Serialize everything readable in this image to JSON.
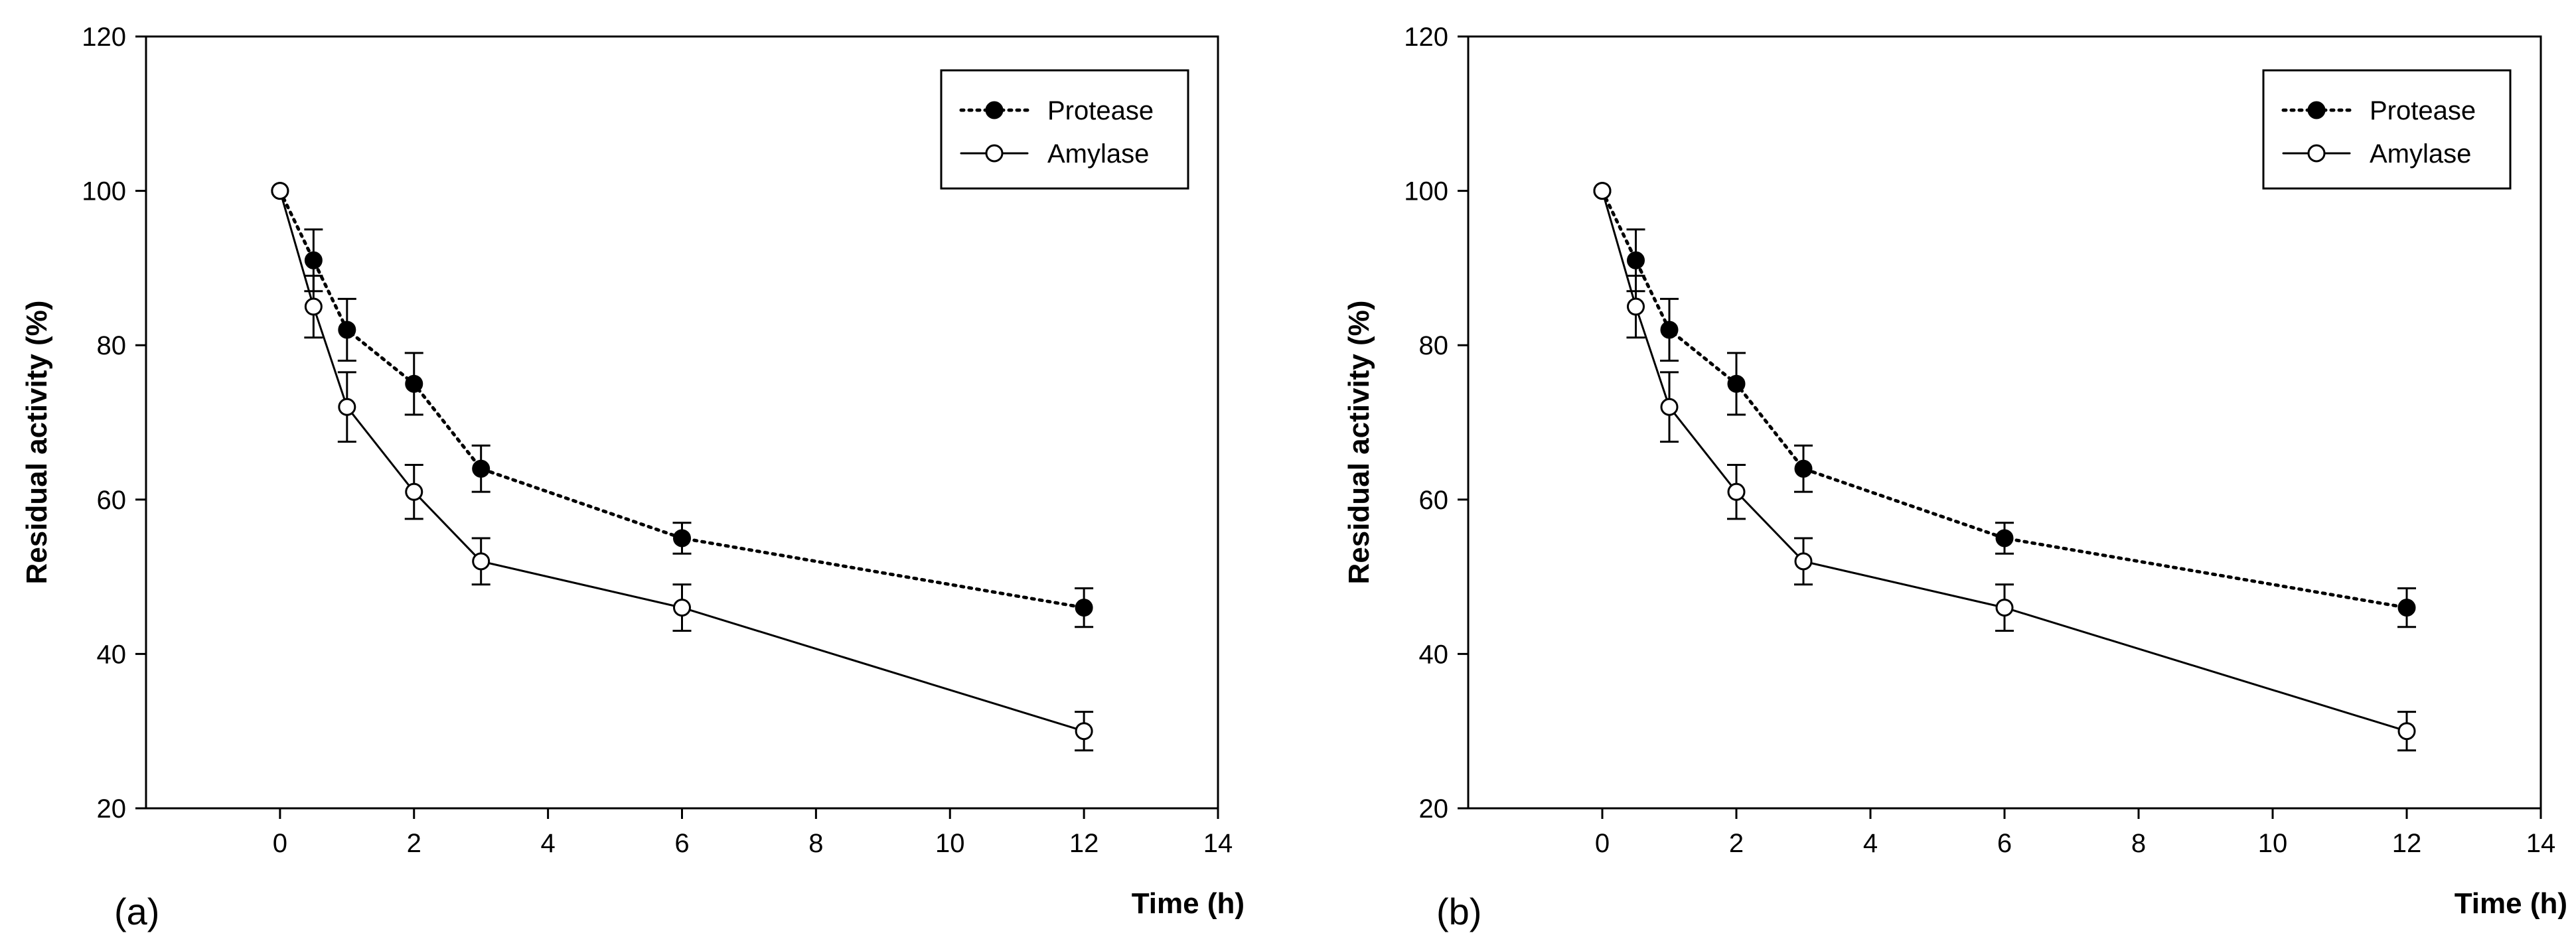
{
  "chart_data": [
    {
      "type": "line",
      "panel_label": "(a)",
      "xlabel": "Time (h)",
      "ylabel": "Residual activity (%)",
      "xlim": [
        -2,
        14
      ],
      "ylim": [
        20,
        120
      ],
      "xticks": [
        0,
        2,
        4,
        6,
        8,
        10,
        12,
        14
      ],
      "yticks": [
        20,
        40,
        60,
        80,
        100,
        120
      ],
      "x": [
        0,
        0.5,
        1,
        2,
        3,
        6,
        12
      ],
      "legend": "top-right",
      "series": [
        {
          "name": "Protease",
          "marker": "filled-circle",
          "line": "dotted",
          "values": [
            100,
            91,
            82,
            75,
            64,
            55,
            46
          ],
          "errors": [
            0,
            4,
            4,
            4,
            3,
            2,
            2.5
          ]
        },
        {
          "name": "Amylase",
          "marker": "open-circle",
          "line": "solid",
          "values": [
            100,
            85,
            72,
            61,
            52,
            46,
            30
          ],
          "errors": [
            0,
            4,
            4.5,
            3.5,
            3,
            3,
            2.5
          ]
        }
      ]
    },
    {
      "type": "line",
      "panel_label": "(b)",
      "xlabel": "Time (h)",
      "ylabel": "Residual activity (%)",
      "xlim": [
        -2,
        14
      ],
      "ylim": [
        20,
        120
      ],
      "xticks": [
        0,
        2,
        4,
        6,
        8,
        10,
        12,
        14
      ],
      "yticks": [
        20,
        40,
        60,
        80,
        100,
        120
      ],
      "x": [
        0,
        0.5,
        1,
        2,
        3,
        6,
        12
      ],
      "legend": "top-right",
      "series": [
        {
          "name": "Protease",
          "marker": "filled-circle",
          "line": "dotted",
          "values": [
            100,
            91,
            82,
            75,
            64,
            55,
            46
          ],
          "errors": [
            0,
            4,
            4,
            4,
            3,
            2,
            2.5
          ]
        },
        {
          "name": "Amylase",
          "marker": "open-circle",
          "line": "solid",
          "values": [
            100,
            85,
            72,
            61,
            52,
            46,
            30
          ],
          "errors": [
            0,
            4,
            4.5,
            3.5,
            3,
            3,
            2.5
          ]
        }
      ]
    }
  ]
}
